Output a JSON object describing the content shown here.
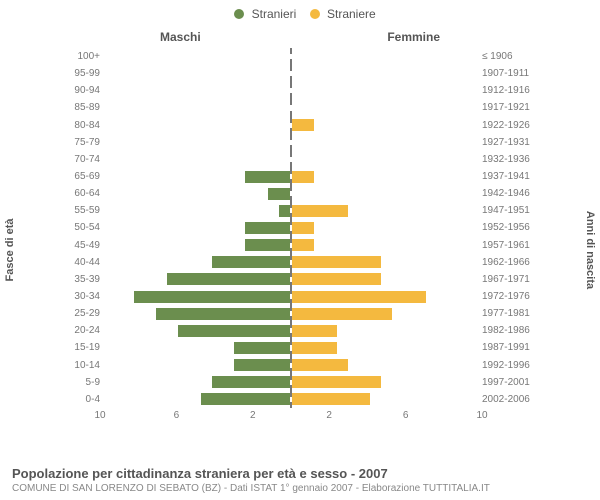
{
  "legend": {
    "male": {
      "label": "Stranieri",
      "color": "#6b8e4e"
    },
    "female": {
      "label": "Straniere",
      "color": "#f4b93f"
    }
  },
  "columns": {
    "left": "Maschi",
    "right": "Femmine"
  },
  "yaxis": {
    "left": "Fasce di età",
    "right": "Anni di nascita"
  },
  "xaxis": {
    "min": 0,
    "max": 10,
    "ticks": [
      10,
      6,
      2,
      2,
      6,
      10
    ]
  },
  "title": "Popolazione per cittadinanza straniera per età e sesso - 2007",
  "source": "COMUNE DI SAN LORENZO DI SEBATO (BZ) - Dati ISTAT 1° gennaio 2007 - Elaborazione TUTTITALIA.IT",
  "style": {
    "background": "#ffffff",
    "text_color": "#555555",
    "muted_color": "#888888",
    "axis_color": "#777777",
    "divider_dash": "2px dashed #777",
    "font_family": "Arial",
    "tick_fontsize": 10,
    "label_fontsize": 10,
    "title_fontsize": 13
  },
  "rows": [
    {
      "age": "100+",
      "birth": "≤ 1906",
      "m": 0.0,
      "f": 0.0
    },
    {
      "age": "95-99",
      "birth": "1907-1911",
      "m": 0.0,
      "f": 0.0
    },
    {
      "age": "90-94",
      "birth": "1912-1916",
      "m": 0.0,
      "f": 0.0
    },
    {
      "age": "85-89",
      "birth": "1917-1921",
      "m": 0.0,
      "f": 0.0
    },
    {
      "age": "80-84",
      "birth": "1922-1926",
      "m": 0.0,
      "f": 1.2
    },
    {
      "age": "75-79",
      "birth": "1927-1931",
      "m": 0.0,
      "f": 0.0
    },
    {
      "age": "70-74",
      "birth": "1932-1936",
      "m": 0.0,
      "f": 0.0
    },
    {
      "age": "65-69",
      "birth": "1937-1941",
      "m": 2.4,
      "f": 1.2
    },
    {
      "age": "60-64",
      "birth": "1942-1946",
      "m": 1.2,
      "f": 0.0
    },
    {
      "age": "55-59",
      "birth": "1947-1951",
      "m": 0.6,
      "f": 3.0
    },
    {
      "age": "50-54",
      "birth": "1952-1956",
      "m": 2.4,
      "f": 1.2
    },
    {
      "age": "45-49",
      "birth": "1957-1961",
      "m": 2.4,
      "f": 1.2
    },
    {
      "age": "40-44",
      "birth": "1962-1966",
      "m": 4.2,
      "f": 4.8
    },
    {
      "age": "35-39",
      "birth": "1967-1971",
      "m": 6.6,
      "f": 4.8
    },
    {
      "age": "30-34",
      "birth": "1972-1976",
      "m": 8.4,
      "f": 7.2
    },
    {
      "age": "25-29",
      "birth": "1977-1981",
      "m": 7.2,
      "f": 5.4
    },
    {
      "age": "20-24",
      "birth": "1982-1986",
      "m": 6.0,
      "f": 2.4
    },
    {
      "age": "15-19",
      "birth": "1987-1991",
      "m": 3.0,
      "f": 2.4
    },
    {
      "age": "10-14",
      "birth": "1992-1996",
      "m": 3.0,
      "f": 3.0
    },
    {
      "age": "5-9",
      "birth": "1997-2001",
      "m": 4.2,
      "f": 4.8
    },
    {
      "age": "0-4",
      "birth": "2002-2006",
      "m": 4.8,
      "f": 4.2
    }
  ]
}
